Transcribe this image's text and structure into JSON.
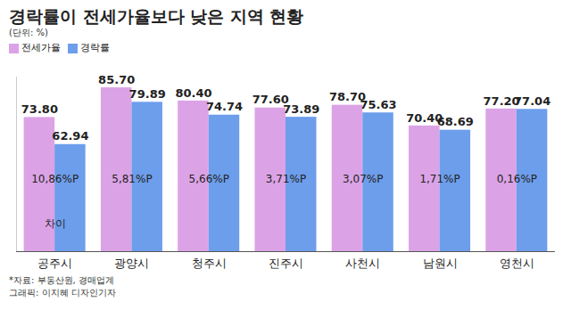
{
  "chart_data": {
    "type": "bar",
    "title": "경락률이 전세가율보다 낮은 지역 현황",
    "subtitle": "(단위: %)",
    "categories": [
      "공주시",
      "광양시",
      "청주시",
      "진주시",
      "사천시",
      "남원시",
      "영천시"
    ],
    "series": [
      {
        "name": "전세가율",
        "color": "#dba3e6",
        "values": [
          73.8,
          85.7,
          80.4,
          77.6,
          78.7,
          70.4,
          77.2
        ],
        "value_labels": [
          "73.80",
          "85.70",
          "80.40",
          "77.60",
          "78.70",
          "70.40",
          "77.20"
        ]
      },
      {
        "name": "경락률",
        "color": "#6d9eeb",
        "values": [
          62.94,
          79.89,
          74.74,
          73.89,
          75.63,
          68.69,
          77.04
        ],
        "value_labels": [
          "62.94",
          "79.89",
          "74.74",
          "73.89",
          "75.63",
          "68.69",
          "77.04"
        ]
      }
    ],
    "annotations": {
      "name": "차이",
      "labels": [
        "10,86%P",
        "5,81%P",
        "5,66%P",
        "3,71%P",
        "3,07%P",
        "1,71%P",
        "0,16%P"
      ]
    },
    "ylim": [
      20,
      90
    ],
    "yticks": [],
    "tick_labels": "x",
    "data_labels": true,
    "legend": "top-left",
    "source": "*자료: 부동산원, 경매업계",
    "credit": "그래픽: 이지혜 디자인기자"
  }
}
